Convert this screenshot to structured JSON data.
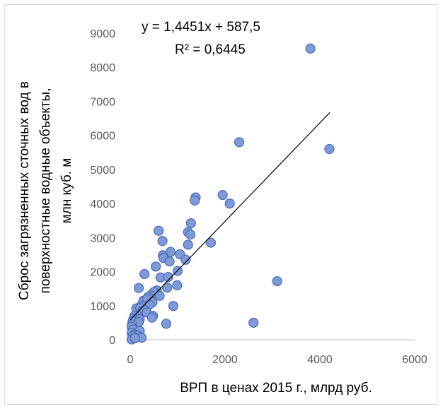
{
  "chart_data": {
    "type": "scatter",
    "title": "",
    "xlabel": "ВРП в ценах 2015 г., млрд руб.",
    "ylabel_lines": [
      "Сброс загрязненных сточных вод в",
      "поверхностные водные объекты,",
      "млн куб. м"
    ],
    "xlim": [
      0,
      6000
    ],
    "ylim": [
      0,
      9000
    ],
    "x_ticks": [
      "0",
      "2000",
      "4000",
      "6000"
    ],
    "y_ticks": [
      "0",
      "1000",
      "2000",
      "3000",
      "4000",
      "5000",
      "6000",
      "7000",
      "8000",
      "9000"
    ],
    "trendline": {
      "equation": "y = 1,4451x + 587,5",
      "r_squared": "R² = 0,6445",
      "slope": 1.4451,
      "intercept": 587.5,
      "x_range": [
        0,
        4210
      ]
    },
    "marker_color": "#7f9ad6",
    "marker_edge_color": "#4a6bb4",
    "points": [
      [
        3800,
        8550
      ],
      [
        2300,
        5800
      ],
      [
        4200,
        5600
      ],
      [
        1380,
        4180
      ],
      [
        1360,
        4090
      ],
      [
        1950,
        4250
      ],
      [
        2100,
        4000
      ],
      [
        1280,
        3420
      ],
      [
        600,
        3200
      ],
      [
        1220,
        3160
      ],
      [
        1270,
        3090
      ],
      [
        680,
        2900
      ],
      [
        1700,
        2850
      ],
      [
        1220,
        2790
      ],
      [
        850,
        2580
      ],
      [
        1050,
        2510
      ],
      [
        690,
        2480
      ],
      [
        700,
        2400
      ],
      [
        1170,
        2350
      ],
      [
        830,
        2300
      ],
      [
        540,
        2150
      ],
      [
        1000,
        2020
      ],
      [
        300,
        1930
      ],
      [
        640,
        1830
      ],
      [
        800,
        1840
      ],
      [
        3100,
        1720
      ],
      [
        990,
        1600
      ],
      [
        780,
        1530
      ],
      [
        180,
        1520
      ],
      [
        560,
        1450
      ],
      [
        500,
        1400
      ],
      [
        430,
        1300
      ],
      [
        620,
        1290
      ],
      [
        380,
        1260
      ],
      [
        280,
        1150
      ],
      [
        360,
        1200
      ],
      [
        470,
        1100
      ],
      [
        400,
        1030
      ],
      [
        230,
        1000
      ],
      [
        910,
        990
      ],
      [
        130,
        920
      ],
      [
        210,
        930
      ],
      [
        260,
        840
      ],
      [
        300,
        870
      ],
      [
        350,
        800
      ],
      [
        480,
        700
      ],
      [
        460,
        650
      ],
      [
        90,
        700
      ],
      [
        70,
        620
      ],
      [
        140,
        580
      ],
      [
        200,
        600
      ],
      [
        50,
        540
      ],
      [
        180,
        520
      ],
      [
        40,
        450
      ],
      [
        760,
        470
      ],
      [
        2600,
        500
      ],
      [
        30,
        380
      ],
      [
        60,
        300
      ],
      [
        200,
        260
      ],
      [
        30,
        200
      ],
      [
        90,
        150
      ],
      [
        150,
        120
      ],
      [
        50,
        100
      ],
      [
        240,
        60
      ],
      [
        60,
        30
      ],
      [
        30,
        10
      ],
      [
        100,
        50
      ]
    ]
  }
}
